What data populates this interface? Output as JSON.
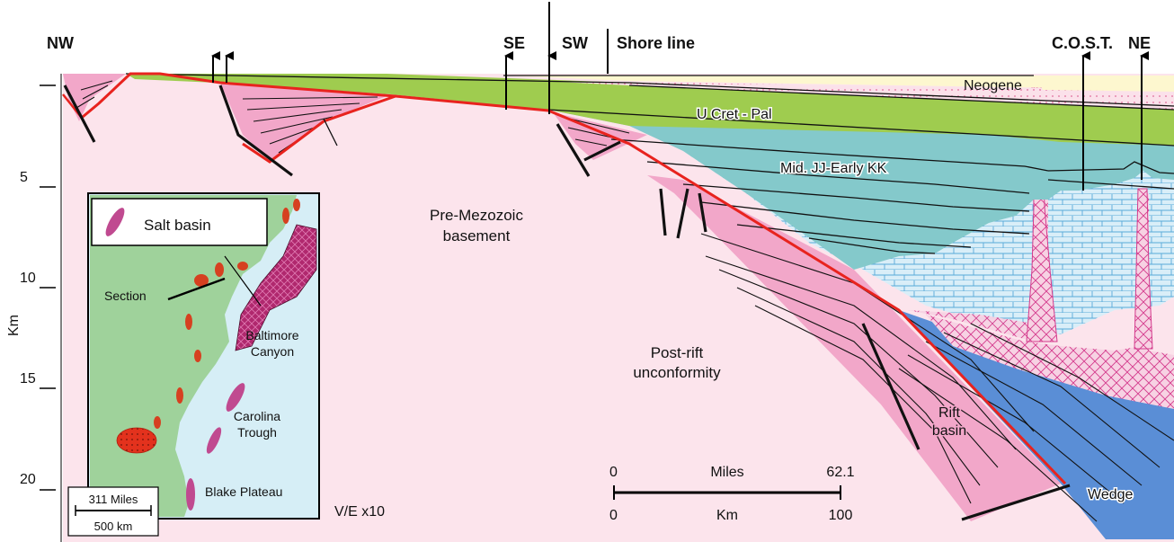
{
  "directions": {
    "nw": "NW",
    "se": "SE",
    "sw": "SW",
    "ne": "NE"
  },
  "shore_line": "Shore line",
  "cost_label": "C.O.S.T.",
  "depth_axis": {
    "unit": "Km",
    "ticks": [
      "5",
      "10",
      "15",
      "20"
    ]
  },
  "formations": {
    "neogene": "Neogene",
    "u_cret_pal": "U Cret - Pal",
    "mid_jj": "Mid. JJ-Early KK",
    "pre_mezozoic_1": "Pre-Mezozoic",
    "pre_mezozoic_2": "basement",
    "post_rift_1": "Post-rift",
    "post_rift_2": "unconformity",
    "rift_1": "Rift",
    "rift_2": "basin",
    "wedge": "Wedge"
  },
  "inset_map": {
    "legend": "Salt basin",
    "section": "Section",
    "baltimore_1": "Baltimore",
    "baltimore_2": "Canyon",
    "carolina_1": "Carolina",
    "carolina_2": "Trough",
    "blake": "Blake Plateau",
    "scale_miles": "311 Miles",
    "scale_km": "500 km"
  },
  "vertical_exaggeration": "V/E x10",
  "scale_bar": {
    "zero_top": "0",
    "miles_label": "Miles",
    "miles_value": "62.1",
    "zero_bottom": "0",
    "km_label": "Km",
    "km_value": "100"
  },
  "colors": {
    "basement": "#fce4ec",
    "rift_fill": "#f2a7c9",
    "post_rift_line": "#e8231e",
    "green": "#9fcc4f",
    "teal": "#84c9cb",
    "neogene": "#fdf7cf",
    "pink_dots": "#fbe1ea",
    "carbonate": "#d9eef8",
    "salt": "#f7c9de",
    "wedge": "#5a8ed6",
    "land": "#9fd29b",
    "sea": "#d6eef6"
  }
}
